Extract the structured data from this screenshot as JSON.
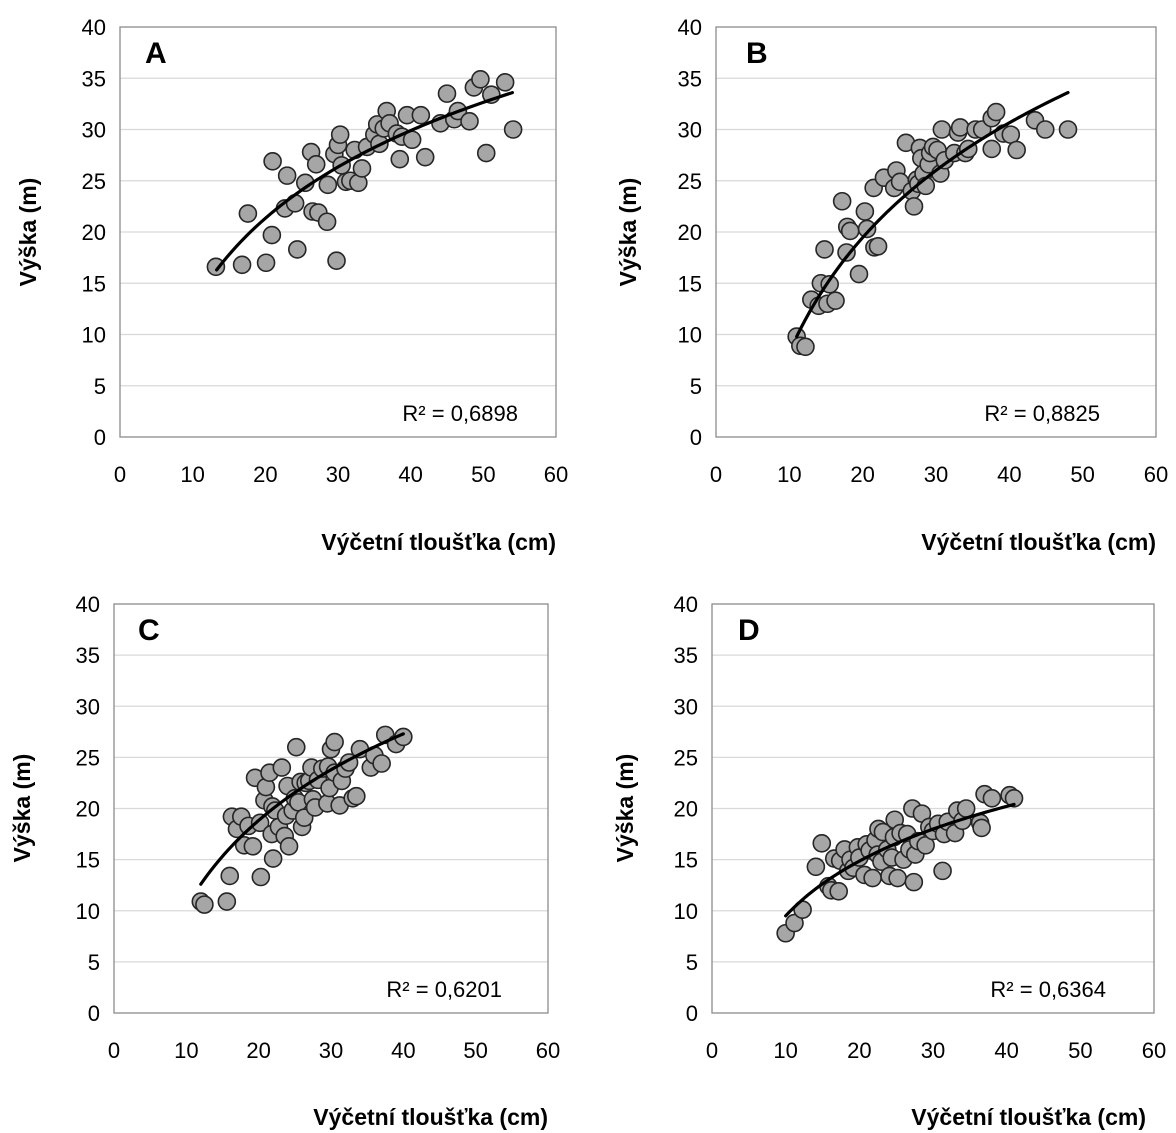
{
  "chart_data": [
    {
      "type": "scatter",
      "panel_label": "A",
      "xlabel": "Výčetní tloušťka (cm)",
      "ylabel": "Výška (m)",
      "xlim": [
        0,
        60
      ],
      "ylim": [
        0,
        40
      ],
      "xticks": [
        "0",
        "10",
        "20",
        "30",
        "40",
        "50",
        "60"
      ],
      "yticks": [
        "0",
        "5",
        "10",
        "15",
        "20",
        "25",
        "30",
        "35",
        "40"
      ],
      "grid": "horizontal",
      "r_squared": "R² = 0,6898",
      "trendline": {
        "type": "logarithmic",
        "x_range": [
          13.3,
          54
        ],
        "y_range": [
          16.3,
          33.6
        ]
      },
      "points": [
        [
          13.2,
          16.6
        ],
        [
          16.8,
          16.8
        ],
        [
          17.6,
          21.8
        ],
        [
          20.1,
          17.0
        ],
        [
          20.9,
          19.7
        ],
        [
          21.0,
          26.9
        ],
        [
          22.7,
          22.3
        ],
        [
          23.0,
          25.5
        ],
        [
          24.1,
          22.8
        ],
        [
          24.4,
          18.3
        ],
        [
          25.5,
          24.8
        ],
        [
          26.3,
          27.8
        ],
        [
          26.5,
          22.0
        ],
        [
          27.0,
          26.6
        ],
        [
          27.3,
          21.9
        ],
        [
          28.5,
          21.0
        ],
        [
          28.6,
          24.6
        ],
        [
          29.5,
          27.6
        ],
        [
          29.8,
          17.2
        ],
        [
          30.0,
          28.5
        ],
        [
          30.3,
          29.5
        ],
        [
          30.5,
          26.5
        ],
        [
          31.1,
          24.9
        ],
        [
          31.7,
          25.0
        ],
        [
          32.3,
          28.0
        ],
        [
          32.8,
          24.8
        ],
        [
          33.3,
          26.2
        ],
        [
          34.0,
          28.3
        ],
        [
          35.0,
          29.5
        ],
        [
          35.4,
          30.5
        ],
        [
          35.7,
          28.6
        ],
        [
          36.3,
          30.1
        ],
        [
          36.7,
          31.8
        ],
        [
          37.1,
          30.6
        ],
        [
          38.1,
          29.6
        ],
        [
          38.5,
          27.1
        ],
        [
          38.8,
          29.3
        ],
        [
          39.5,
          31.4
        ],
        [
          40.2,
          29.0
        ],
        [
          41.4,
          31.4
        ],
        [
          42.0,
          27.3
        ],
        [
          44.1,
          30.6
        ],
        [
          45.0,
          33.5
        ],
        [
          46.0,
          31.0
        ],
        [
          46.5,
          31.8
        ],
        [
          48.1,
          30.8
        ],
        [
          48.7,
          34.1
        ],
        [
          49.6,
          34.9
        ],
        [
          50.4,
          27.7
        ],
        [
          51.1,
          33.4
        ],
        [
          53.0,
          34.6
        ],
        [
          54.1,
          30.0
        ]
      ]
    },
    {
      "type": "scatter",
      "panel_label": "B",
      "xlabel": "Výčetní tloušťka (cm)",
      "ylabel": "Výška (m)",
      "xlim": [
        0,
        60
      ],
      "ylim": [
        0,
        40
      ],
      "xticks": [
        "0",
        "10",
        "20",
        "30",
        "40",
        "50",
        "60"
      ],
      "yticks": [
        "0",
        "5",
        "10",
        "15",
        "20",
        "25",
        "30",
        "35",
        "40"
      ],
      "grid": "horizontal",
      "r_squared": "R² = 0,8825",
      "trendline": {
        "type": "logarithmic",
        "x_range": [
          11,
          48
        ],
        "y_range": [
          9.8,
          33.6
        ]
      },
      "points": [
        [
          11.0,
          9.8
        ],
        [
          11.5,
          8.9
        ],
        [
          12.2,
          8.8
        ],
        [
          13.0,
          13.4
        ],
        [
          14.0,
          12.8
        ],
        [
          14.3,
          15.0
        ],
        [
          14.8,
          18.3
        ],
        [
          15.2,
          13.0
        ],
        [
          15.5,
          14.9
        ],
        [
          16.3,
          13.3
        ],
        [
          17.2,
          23.0
        ],
        [
          17.8,
          18.0
        ],
        [
          17.9,
          20.5
        ],
        [
          18.3,
          20.1
        ],
        [
          19.5,
          15.9
        ],
        [
          20.3,
          22.0
        ],
        [
          20.6,
          20.3
        ],
        [
          21.5,
          24.3
        ],
        [
          21.6,
          18.5
        ],
        [
          22.1,
          18.6
        ],
        [
          22.9,
          25.3
        ],
        [
          24.3,
          24.3
        ],
        [
          24.6,
          26.0
        ],
        [
          25.1,
          24.9
        ],
        [
          25.9,
          28.7
        ],
        [
          26.7,
          24.0
        ],
        [
          27.0,
          22.5
        ],
        [
          27.4,
          25.1
        ],
        [
          27.6,
          24.7
        ],
        [
          27.8,
          28.2
        ],
        [
          28.0,
          27.2
        ],
        [
          28.3,
          25.7
        ],
        [
          28.6,
          24.5
        ],
        [
          29.0,
          26.6
        ],
        [
          29.2,
          27.7
        ],
        [
          29.6,
          28.3
        ],
        [
          30.2,
          28.0
        ],
        [
          30.6,
          25.7
        ],
        [
          30.8,
          30.0
        ],
        [
          31.2,
          27.0
        ],
        [
          32.5,
          27.7
        ],
        [
          33.0,
          29.7
        ],
        [
          33.3,
          30.2
        ],
        [
          34.0,
          27.7
        ],
        [
          34.4,
          28.1
        ],
        [
          35.4,
          30.0
        ],
        [
          36.3,
          30.0
        ],
        [
          37.6,
          28.1
        ],
        [
          37.6,
          31.1
        ],
        [
          38.2,
          31.7
        ],
        [
          39.2,
          29.6
        ],
        [
          40.2,
          29.5
        ],
        [
          41.0,
          28.0
        ],
        [
          43.5,
          30.9
        ],
        [
          44.9,
          30.0
        ],
        [
          48.0,
          30.0
        ]
      ]
    },
    {
      "type": "scatter",
      "panel_label": "C",
      "xlabel": "Výčetní tloušťka (cm)",
      "ylabel": "Výška (m)",
      "xlim": [
        0,
        60
      ],
      "ylim": [
        0,
        40
      ],
      "xticks": [
        "0",
        "10",
        "20",
        "30",
        "40",
        "50",
        "60"
      ],
      "yticks": [
        "0",
        "5",
        "10",
        "15",
        "20",
        "25",
        "30",
        "35",
        "40"
      ],
      "grid": "horizontal",
      "r_squared": "R² = 0,6201",
      "trendline": {
        "type": "logarithmic",
        "x_range": [
          12,
          40
        ],
        "y_range": [
          12.6,
          27.3
        ]
      },
      "points": [
        [
          12.0,
          10.9
        ],
        [
          12.5,
          10.6
        ],
        [
          15.6,
          10.9
        ],
        [
          16.0,
          13.4
        ],
        [
          16.3,
          19.2
        ],
        [
          17.0,
          18.0
        ],
        [
          17.6,
          19.2
        ],
        [
          18.0,
          16.4
        ],
        [
          18.6,
          18.3
        ],
        [
          19.2,
          16.3
        ],
        [
          19.5,
          23.0
        ],
        [
          20.2,
          18.6
        ],
        [
          20.3,
          13.3
        ],
        [
          20.8,
          20.8
        ],
        [
          21.0,
          22.1
        ],
        [
          21.5,
          23.5
        ],
        [
          21.8,
          17.5
        ],
        [
          21.9,
          20.2
        ],
        [
          22.0,
          15.1
        ],
        [
          22.3,
          19.8
        ],
        [
          22.8,
          18.2
        ],
        [
          23.2,
          24.0
        ],
        [
          23.6,
          17.3
        ],
        [
          23.8,
          19.3
        ],
        [
          24.0,
          22.2
        ],
        [
          24.2,
          16.3
        ],
        [
          24.7,
          19.8
        ],
        [
          25.0,
          21.0
        ],
        [
          25.2,
          26.0
        ],
        [
          25.5,
          20.6
        ],
        [
          25.8,
          22.6
        ],
        [
          26.0,
          18.2
        ],
        [
          26.3,
          19.1
        ],
        [
          26.5,
          22.5
        ],
        [
          27.0,
          22.7
        ],
        [
          27.3,
          24.0
        ],
        [
          27.5,
          20.9
        ],
        [
          27.8,
          20.1
        ],
        [
          28.2,
          22.8
        ],
        [
          28.8,
          23.9
        ],
        [
          29.5,
          20.5
        ],
        [
          29.6,
          24.1
        ],
        [
          29.8,
          22.0
        ],
        [
          30.0,
          25.8
        ],
        [
          30.5,
          23.5
        ],
        [
          30.5,
          26.5
        ],
        [
          31.2,
          20.3
        ],
        [
          31.5,
          22.7
        ],
        [
          32.0,
          23.9
        ],
        [
          32.5,
          24.5
        ],
        [
          33.0,
          21.0
        ],
        [
          33.5,
          21.2
        ],
        [
          34.0,
          25.8
        ],
        [
          35.5,
          24.0
        ],
        [
          36.0,
          25.2
        ],
        [
          37.0,
          24.4
        ],
        [
          37.5,
          27.2
        ],
        [
          39.0,
          26.3
        ],
        [
          40.0,
          27.0
        ]
      ]
    },
    {
      "type": "scatter",
      "panel_label": "D",
      "xlabel": "Výčetní tloušťka (cm)",
      "ylabel": "Výška (m)",
      "xlim": [
        0,
        60
      ],
      "ylim": [
        0,
        40
      ],
      "xticks": [
        "0",
        "10",
        "20",
        "30",
        "40",
        "50",
        "60"
      ],
      "yticks": [
        "0",
        "5",
        "10",
        "15",
        "20",
        "25",
        "30",
        "35",
        "40"
      ],
      "grid": "horizontal",
      "r_squared": "R² = 0,6364",
      "trendline": {
        "type": "logarithmic",
        "x_range": [
          10,
          41
        ],
        "y_range": [
          9.5,
          20.4
        ]
      },
      "points": [
        [
          10.0,
          7.8
        ],
        [
          11.2,
          8.8
        ],
        [
          12.3,
          10.1
        ],
        [
          14.1,
          14.3
        ],
        [
          14.9,
          16.6
        ],
        [
          15.8,
          12.4
        ],
        [
          16.2,
          12.0
        ],
        [
          16.6,
          15.1
        ],
        [
          17.2,
          11.9
        ],
        [
          17.4,
          14.9
        ],
        [
          18.0,
          16.0
        ],
        [
          18.5,
          13.9
        ],
        [
          18.8,
          15.0
        ],
        [
          19.2,
          14.2
        ],
        [
          19.8,
          16.2
        ],
        [
          20.0,
          15.2
        ],
        [
          20.7,
          13.5
        ],
        [
          21.0,
          16.5
        ],
        [
          21.4,
          15.9
        ],
        [
          21.8,
          13.2
        ],
        [
          22.2,
          16.9
        ],
        [
          22.5,
          15.5
        ],
        [
          22.6,
          18.0
        ],
        [
          23.0,
          14.8
        ],
        [
          23.2,
          17.7
        ],
        [
          23.8,
          16.0
        ],
        [
          24.1,
          13.4
        ],
        [
          24.4,
          15.2
        ],
        [
          24.7,
          17.2
        ],
        [
          24.8,
          18.9
        ],
        [
          25.2,
          13.2
        ],
        [
          25.6,
          17.6
        ],
        [
          26.0,
          15.0
        ],
        [
          26.5,
          17.5
        ],
        [
          26.8,
          16.0
        ],
        [
          27.2,
          20.0
        ],
        [
          27.4,
          12.8
        ],
        [
          27.6,
          15.5
        ],
        [
          28.0,
          16.8
        ],
        [
          28.5,
          19.5
        ],
        [
          29.0,
          16.4
        ],
        [
          29.5,
          18.2
        ],
        [
          30.0,
          17.8
        ],
        [
          30.7,
          18.5
        ],
        [
          31.3,
          13.9
        ],
        [
          31.5,
          17.5
        ],
        [
          32.0,
          18.7
        ],
        [
          33.0,
          17.6
        ],
        [
          33.3,
          19.8
        ],
        [
          34.0,
          18.8
        ],
        [
          34.5,
          20.0
        ],
        [
          36.4,
          18.6
        ],
        [
          36.6,
          18.1
        ],
        [
          37.0,
          21.4
        ],
        [
          38.0,
          21.0
        ],
        [
          40.4,
          21.3
        ],
        [
          41.0,
          21.0
        ]
      ]
    }
  ]
}
